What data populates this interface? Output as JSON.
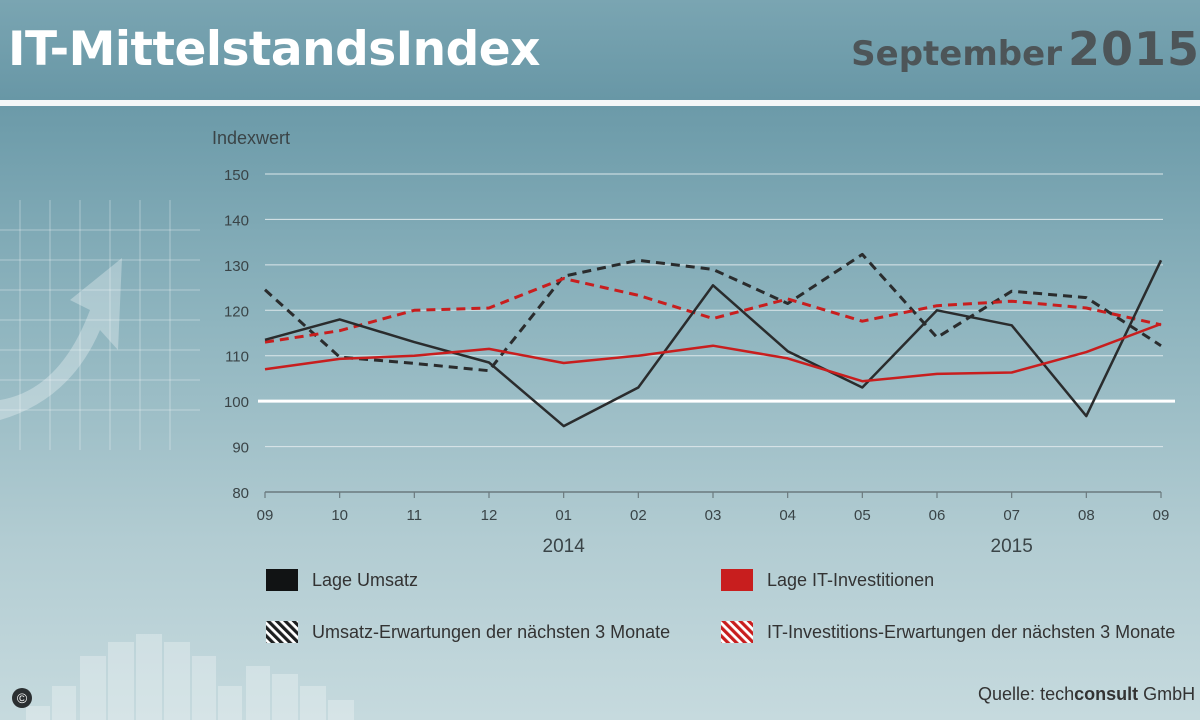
{
  "header": {
    "title": "IT-MittelstandsIndex",
    "month": "September",
    "year": "2015"
  },
  "colors": {
    "black_series": "#2a2c2d",
    "red_series": "#c81e1e",
    "baseline": "#ffffff"
  },
  "chart_data": {
    "type": "line",
    "ylabel": "Indexwert",
    "ylim": [
      80,
      150
    ],
    "yticks": [
      80,
      90,
      100,
      110,
      120,
      130,
      140,
      150
    ],
    "categories": [
      "09",
      "10",
      "11",
      "12",
      "01",
      "02",
      "03",
      "04",
      "05",
      "06",
      "07",
      "08",
      "09"
    ],
    "year_labels": [
      {
        "label": "2014",
        "between": [
          "12",
          "02"
        ]
      },
      {
        "label": "2015",
        "between": [
          "06",
          "08"
        ]
      }
    ],
    "reference_line": 100,
    "grid": true,
    "series": [
      {
        "name": "Lage Umsatz",
        "color": "#2a2c2d",
        "style": "solid",
        "values": [
          113.5,
          118,
          113,
          108.5,
          94.5,
          103,
          125.5,
          111,
          103,
          120,
          116.7,
          96.7,
          131
        ]
      },
      {
        "name": "Lage IT-Investitionen",
        "color": "#c81e1e",
        "style": "solid",
        "values": [
          107,
          109.3,
          110,
          111.5,
          108.4,
          110,
          112.2,
          109.4,
          104.4,
          106,
          106.3,
          110.8,
          117
        ]
      },
      {
        "name": "Umsatz-Erwartungen der nächsten 3 Monate",
        "color": "#2a2c2d",
        "style": "dashed",
        "values": [
          124.5,
          109.7,
          108.3,
          106.7,
          127.5,
          131,
          129,
          121.5,
          132.3,
          114,
          124.2,
          122.8,
          112.2
        ]
      },
      {
        "name": "IT-Investitions-Erwartungen der nächsten 3 Monate",
        "color": "#c81e1e",
        "style": "dashed",
        "values": [
          113,
          115.5,
          120,
          120.5,
          127,
          123.3,
          118.2,
          122.5,
          117.6,
          121,
          122,
          120.5,
          116.8
        ]
      }
    ]
  },
  "legend": {
    "item1": "Lage Umsatz",
    "item2": "Lage IT-Investitionen",
    "item3": "Umsatz-Erwartungen der nächsten 3 Monate",
    "item4": "IT-Investitions-Erwartungen der nächsten 3 Monate"
  },
  "source": {
    "prefix": "Quelle:",
    "brand_light": "tech",
    "brand_bold": "consult",
    "suffix": "GmbH"
  },
  "copyright_symbol": "©"
}
